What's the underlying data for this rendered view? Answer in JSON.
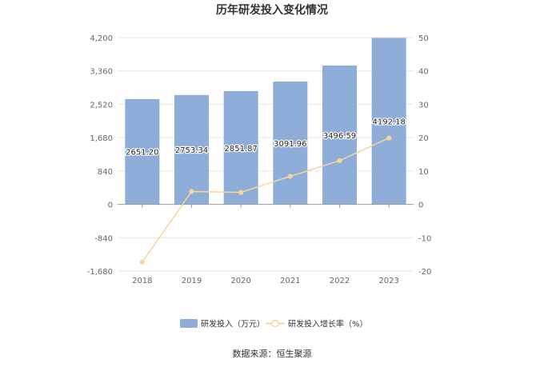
{
  "chart_data": {
    "type": "bar",
    "title": "历年研发投入变化情况",
    "categories": [
      "2018",
      "2019",
      "2020",
      "2021",
      "2022",
      "2023"
    ],
    "series": [
      {
        "name": "研发投入（万元）",
        "type": "bar",
        "axis": "left",
        "values": [
          2651.2,
          2753.34,
          2851.87,
          3091.96,
          3496.59,
          4192.18
        ],
        "labels": [
          "2651.20",
          "2753.34",
          "2851.87",
          "3091.96",
          "3496.59",
          "4192.18"
        ],
        "color": "#8eadd8"
      },
      {
        "name": "研发投入增长率（%）",
        "type": "line",
        "axis": "right",
        "values": [
          -17.3,
          3.85,
          3.58,
          8.42,
          13.09,
          19.89
        ],
        "color": "#f8d59a"
      }
    ],
    "y_left": {
      "min": -1680,
      "max": 4200,
      "ticks": [
        "4,200",
        "3,360",
        "2,520",
        "1,680",
        "840",
        "0",
        "-840",
        "-1,680"
      ],
      "tick_values": [
        4200,
        3360,
        2520,
        1680,
        840,
        0,
        -840,
        -1680
      ]
    },
    "y_right": {
      "min": -20,
      "max": 50,
      "ticks": [
        "50",
        "40",
        "30",
        "20",
        "10",
        "0",
        "-10",
        "-20"
      ],
      "tick_values": [
        50,
        40,
        30,
        20,
        10,
        0,
        -10,
        -20
      ]
    },
    "legend_position": "bottom",
    "grid": true
  },
  "source_label": "数据来源：恒生聚源"
}
